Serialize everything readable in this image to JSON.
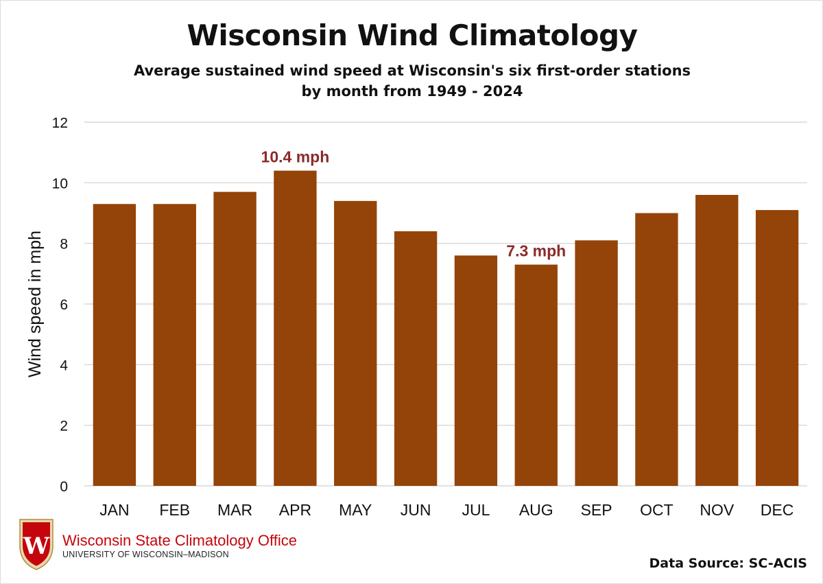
{
  "colors": {
    "bar": "#944408",
    "annotation": "#8b2a2a",
    "grid": "#cfcfcf",
    "brand_red": "#c5050c"
  },
  "org": {
    "name": "Wisconsin State Climatology Office",
    "sub": "UNIVERSITY OF WISCONSIN–MADISON",
    "logo_icon": "uw-crest-icon"
  },
  "source_label": "Data Source: SC-ACIS",
  "chart_data": {
    "type": "bar",
    "title": "Wisconsin Wind Climatology",
    "subtitle": [
      "Average sustained wind speed at Wisconsin's six first-order stations",
      "by month from 1949 - 2024"
    ],
    "ylabel": "Wind speed in mph",
    "xlabel": "",
    "ylim": [
      0,
      12
    ],
    "yticks": [
      0,
      2,
      4,
      6,
      8,
      10,
      12
    ],
    "grid": true,
    "categories": [
      "JAN",
      "FEB",
      "MAR",
      "APR",
      "MAY",
      "JUN",
      "JUL",
      "AUG",
      "SEP",
      "OCT",
      "NOV",
      "DEC"
    ],
    "values": [
      9.3,
      9.3,
      9.7,
      10.4,
      9.4,
      8.4,
      7.6,
      7.3,
      8.1,
      9.0,
      9.6,
      9.1
    ],
    "annotations": [
      {
        "category": "APR",
        "text": "10.4 mph"
      },
      {
        "category": "AUG",
        "text": "7.3 mph"
      }
    ]
  }
}
